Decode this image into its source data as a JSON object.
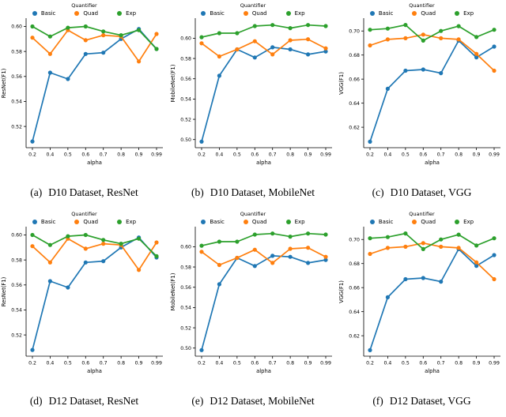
{
  "page": {
    "background": "#ffffff"
  },
  "colors": {
    "basic": "#1f77b4",
    "quad": "#ff7f0e",
    "exp": "#2ca02c",
    "axis": "#000000"
  },
  "legend": {
    "title": "Quantifier",
    "items": [
      {
        "label": "Basic",
        "color": "#1f77b4"
      },
      {
        "label": "Quad",
        "color": "#ff7f0e"
      },
      {
        "label": "Exp",
        "color": "#2ca02c"
      }
    ]
  },
  "chart_data": [
    {
      "id": "a",
      "type": "line",
      "caption_label": "(a)",
      "caption_text": "D10 Dataset, ResNet",
      "title": "",
      "xlabel": "alpha",
      "ylabel": "ResNet(F1)",
      "legend_title": "Quantifier",
      "legend_position": "top-center",
      "grid": false,
      "categories": [
        "0.2",
        "0.4",
        "0.5",
        "0.6",
        "0.7",
        "0.8",
        "0.9",
        "0.99"
      ],
      "ylim": [
        0.503,
        0.606
      ],
      "ytick_values": [
        0.52,
        0.54,
        0.56,
        0.58,
        0.6
      ],
      "ytick_labels": [
        "0.52",
        "0.54",
        "0.56",
        "0.58",
        "0.60"
      ],
      "series": [
        {
          "name": "Basic",
          "color": "#1f77b4",
          "values": [
            0.508,
            0.563,
            0.558,
            0.578,
            0.579,
            0.59,
            0.598,
            0.582
          ]
        },
        {
          "name": "Quad",
          "color": "#ff7f0e",
          "values": [
            0.591,
            0.578,
            0.597,
            0.589,
            0.593,
            0.592,
            0.572,
            0.594
          ]
        },
        {
          "name": "Exp",
          "color": "#2ca02c",
          "values": [
            0.6,
            0.592,
            0.599,
            0.6,
            0.596,
            0.593,
            0.597,
            0.582
          ]
        }
      ]
    },
    {
      "id": "b",
      "type": "line",
      "caption_label": "(b)",
      "caption_text": "D10 Dataset, MobileNet",
      "title": "",
      "xlabel": "alpha",
      "ylabel": "MobileNet(F1)",
      "legend_title": "Quantifier",
      "legend_position": "top-center",
      "grid": false,
      "categories": [
        "0.2",
        "0.4",
        "0.5",
        "0.6",
        "0.7",
        "0.8",
        "0.9",
        "0.99"
      ],
      "ylim": [
        0.492,
        0.619
      ],
      "ytick_values": [
        0.5,
        0.52,
        0.54,
        0.56,
        0.58,
        0.6
      ],
      "ytick_labels": [
        "0.50",
        "0.52",
        "0.54",
        "0.56",
        "0.58",
        "0.60"
      ],
      "series": [
        {
          "name": "Basic",
          "color": "#1f77b4",
          "values": [
            0.498,
            0.563,
            0.589,
            0.581,
            0.591,
            0.589,
            0.584,
            0.587
          ]
        },
        {
          "name": "Quad",
          "color": "#ff7f0e",
          "values": [
            0.595,
            0.582,
            0.589,
            0.597,
            0.584,
            0.598,
            0.599,
            0.59
          ]
        },
        {
          "name": "Exp",
          "color": "#2ca02c",
          "values": [
            0.601,
            0.605,
            0.605,
            0.612,
            0.613,
            0.61,
            0.613,
            0.612
          ]
        }
      ]
    },
    {
      "id": "c",
      "type": "line",
      "caption_label": "(c)",
      "caption_text": "D10 Dataset, VGG",
      "title": "",
      "xlabel": "alpha",
      "ylabel": "VGG(F1)",
      "legend_title": "Quantifier",
      "legend_position": "top-center",
      "grid": false,
      "categories": [
        "0.2",
        "0.4",
        "0.5",
        "0.6",
        "0.7",
        "0.8",
        "0.9",
        "0.99"
      ],
      "ylim": [
        0.603,
        0.71
      ],
      "ytick_values": [
        0.62,
        0.64,
        0.66,
        0.68,
        0.7
      ],
      "ytick_labels": [
        "0.62",
        "0.64",
        "0.66",
        "0.68",
        "0.70"
      ],
      "series": [
        {
          "name": "Basic",
          "color": "#1f77b4",
          "values": [
            0.608,
            0.652,
            0.667,
            0.668,
            0.665,
            0.692,
            0.678,
            0.687
          ]
        },
        {
          "name": "Quad",
          "color": "#ff7f0e",
          "values": [
            0.688,
            0.693,
            0.694,
            0.697,
            0.694,
            0.693,
            0.681,
            0.667
          ]
        },
        {
          "name": "Exp",
          "color": "#2ca02c",
          "values": [
            0.701,
            0.702,
            0.705,
            0.692,
            0.7,
            0.704,
            0.695,
            0.701
          ]
        }
      ]
    },
    {
      "id": "d",
      "type": "line",
      "caption_label": "(d)",
      "caption_text": "D12 Dataset, ResNet",
      "title": "",
      "xlabel": "alpha",
      "ylabel": "ResNet(F1)",
      "legend_title": "Quantifier",
      "legend_position": "top-center",
      "grid": false,
      "categories": [
        "0.2",
        "0.4",
        "0.5",
        "0.6",
        "0.7",
        "0.8",
        "0.9",
        "0.99"
      ],
      "ylim": [
        0.503,
        0.606
      ],
      "ytick_values": [
        0.52,
        0.54,
        0.56,
        0.58,
        0.6
      ],
      "ytick_labels": [
        "0.52",
        "0.54",
        "0.56",
        "0.58",
        "0.60"
      ],
      "series": [
        {
          "name": "Basic",
          "color": "#1f77b4",
          "values": [
            0.508,
            0.563,
            0.558,
            0.578,
            0.579,
            0.59,
            0.598,
            0.582
          ]
        },
        {
          "name": "Quad",
          "color": "#ff7f0e",
          "values": [
            0.591,
            0.578,
            0.597,
            0.589,
            0.593,
            0.592,
            0.572,
            0.594
          ]
        },
        {
          "name": "Exp",
          "color": "#2ca02c",
          "values": [
            0.6,
            0.592,
            0.599,
            0.6,
            0.596,
            0.593,
            0.597,
            0.583
          ]
        }
      ]
    },
    {
      "id": "e",
      "type": "line",
      "caption_label": "(e)",
      "caption_text": "D12 Dataset, MobileNet",
      "title": "",
      "xlabel": "alpha",
      "ylabel": "MobileNet(F1)",
      "legend_title": "Quantifier",
      "legend_position": "top-center",
      "grid": false,
      "categories": [
        "0.2",
        "0.4",
        "0.5",
        "0.6",
        "0.7",
        "0.8",
        "0.9",
        "0.99"
      ],
      "ylim": [
        0.492,
        0.619
      ],
      "ytick_values": [
        0.5,
        0.52,
        0.54,
        0.56,
        0.58,
        0.6
      ],
      "ytick_labels": [
        "0.50",
        "0.52",
        "0.54",
        "0.56",
        "0.58",
        "0.60"
      ],
      "series": [
        {
          "name": "Basic",
          "color": "#1f77b4",
          "values": [
            0.498,
            0.563,
            0.589,
            0.581,
            0.591,
            0.59,
            0.584,
            0.587
          ]
        },
        {
          "name": "Quad",
          "color": "#ff7f0e",
          "values": [
            0.595,
            0.582,
            0.589,
            0.597,
            0.584,
            0.598,
            0.599,
            0.59
          ]
        },
        {
          "name": "Exp",
          "color": "#2ca02c",
          "values": [
            0.601,
            0.605,
            0.605,
            0.612,
            0.613,
            0.61,
            0.613,
            0.612
          ]
        }
      ]
    },
    {
      "id": "f",
      "type": "line",
      "caption_label": "(f)",
      "caption_text": "D12 Dataset, VGG",
      "title": "",
      "xlabel": "alpha",
      "ylabel": "VGG(F1)",
      "legend_title": "Quantifier",
      "legend_position": "top-center",
      "grid": false,
      "categories": [
        "0.2",
        "0.4",
        "0.5",
        "0.6",
        "0.7",
        "0.8",
        "0.9",
        "0.99"
      ],
      "ylim": [
        0.603,
        0.71
      ],
      "ytick_values": [
        0.62,
        0.64,
        0.66,
        0.68,
        0.7
      ],
      "ytick_labels": [
        "0.62",
        "0.64",
        "0.66",
        "0.68",
        "0.70"
      ],
      "series": [
        {
          "name": "Basic",
          "color": "#1f77b4",
          "values": [
            0.608,
            0.652,
            0.667,
            0.668,
            0.665,
            0.692,
            0.678,
            0.687
          ]
        },
        {
          "name": "Quad",
          "color": "#ff7f0e",
          "values": [
            0.688,
            0.693,
            0.694,
            0.697,
            0.694,
            0.693,
            0.681,
            0.667
          ]
        },
        {
          "name": "Exp",
          "color": "#2ca02c",
          "values": [
            0.701,
            0.702,
            0.705,
            0.692,
            0.7,
            0.704,
            0.695,
            0.701
          ]
        }
      ]
    }
  ]
}
